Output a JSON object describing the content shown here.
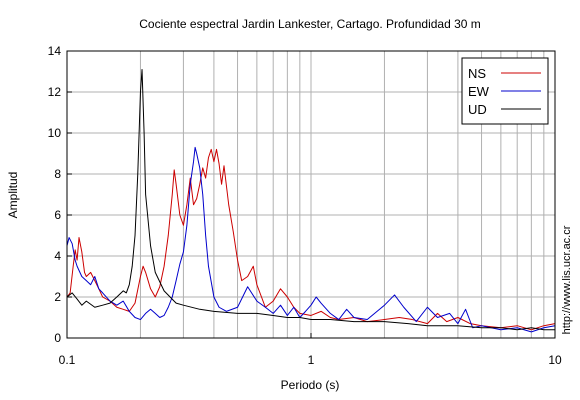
{
  "chart_data": {
    "type": "line",
    "title": "Cociente espectral Jardin Lankester, Cartago. Profundidad 30 m",
    "xlabel": "Periodo (s)",
    "ylabel": "Amplitud",
    "x_scale": "log",
    "xlim": [
      0.1,
      10
    ],
    "ylim": [
      0,
      14
    ],
    "grid": true,
    "legend_position": "top-right",
    "xticks": [
      {
        "value": 0.1,
        "label": "0.1"
      },
      {
        "value": 1,
        "label": "1"
      },
      {
        "value": 10,
        "label": "10"
      }
    ],
    "yticks": [
      0,
      2,
      4,
      6,
      8,
      10,
      12,
      14
    ],
    "side_label": "http://www.lis.ucr.ac.cr",
    "series": [
      {
        "name": "NS",
        "color": "#cc0000",
        "points": [
          [
            0.1,
            2.0
          ],
          [
            0.103,
            2.2
          ],
          [
            0.106,
            3.5
          ],
          [
            0.108,
            4.3
          ],
          [
            0.11,
            3.8
          ],
          [
            0.112,
            4.9
          ],
          [
            0.115,
            4.2
          ],
          [
            0.118,
            3.2
          ],
          [
            0.12,
            3.0
          ],
          [
            0.125,
            3.2
          ],
          [
            0.13,
            2.8
          ],
          [
            0.135,
            2.4
          ],
          [
            0.14,
            2.0
          ],
          [
            0.15,
            1.8
          ],
          [
            0.16,
            1.5
          ],
          [
            0.17,
            1.4
          ],
          [
            0.18,
            1.3
          ],
          [
            0.19,
            1.7
          ],
          [
            0.2,
            3.0
          ],
          [
            0.205,
            3.5
          ],
          [
            0.21,
            3.2
          ],
          [
            0.22,
            2.4
          ],
          [
            0.23,
            2.0
          ],
          [
            0.24,
            2.5
          ],
          [
            0.25,
            3.5
          ],
          [
            0.26,
            5.0
          ],
          [
            0.27,
            7.0
          ],
          [
            0.275,
            8.2
          ],
          [
            0.28,
            7.5
          ],
          [
            0.29,
            6.0
          ],
          [
            0.3,
            5.5
          ],
          [
            0.31,
            6.5
          ],
          [
            0.32,
            7.8
          ],
          [
            0.33,
            6.5
          ],
          [
            0.34,
            6.8
          ],
          [
            0.35,
            7.5
          ],
          [
            0.36,
            8.3
          ],
          [
            0.37,
            7.8
          ],
          [
            0.38,
            8.8
          ],
          [
            0.39,
            9.2
          ],
          [
            0.4,
            8.6
          ],
          [
            0.41,
            9.2
          ],
          [
            0.42,
            8.5
          ],
          [
            0.43,
            7.5
          ],
          [
            0.44,
            8.4
          ],
          [
            0.46,
            6.5
          ],
          [
            0.48,
            5.2
          ],
          [
            0.5,
            3.8
          ],
          [
            0.52,
            2.8
          ],
          [
            0.55,
            3.0
          ],
          [
            0.58,
            3.5
          ],
          [
            0.6,
            2.6
          ],
          [
            0.65,
            1.5
          ],
          [
            0.7,
            1.8
          ],
          [
            0.75,
            2.4
          ],
          [
            0.8,
            2.0
          ],
          [
            0.85,
            1.5
          ],
          [
            0.9,
            1.2
          ],
          [
            1.0,
            1.1
          ],
          [
            1.1,
            1.3
          ],
          [
            1.2,
            1.0
          ],
          [
            1.3,
            0.9
          ],
          [
            1.5,
            1.0
          ],
          [
            1.7,
            0.8
          ],
          [
            2.0,
            0.9
          ],
          [
            2.3,
            1.0
          ],
          [
            2.6,
            0.9
          ],
          [
            3.0,
            0.7
          ],
          [
            3.3,
            1.2
          ],
          [
            3.6,
            0.8
          ],
          [
            4.0,
            1.0
          ],
          [
            4.5,
            0.7
          ],
          [
            5.0,
            0.6
          ],
          [
            6.0,
            0.5
          ],
          [
            7.0,
            0.6
          ],
          [
            8.0,
            0.4
          ],
          [
            9.0,
            0.6
          ],
          [
            10.0,
            0.7
          ]
        ]
      },
      {
        "name": "EW",
        "color": "#0000cc",
        "points": [
          [
            0.1,
            4.5
          ],
          [
            0.102,
            4.9
          ],
          [
            0.105,
            4.6
          ],
          [
            0.108,
            3.8
          ],
          [
            0.11,
            3.5
          ],
          [
            0.115,
            3.0
          ],
          [
            0.12,
            2.8
          ],
          [
            0.125,
            2.6
          ],
          [
            0.13,
            3.0
          ],
          [
            0.135,
            2.4
          ],
          [
            0.14,
            2.2
          ],
          [
            0.15,
            1.8
          ],
          [
            0.16,
            1.6
          ],
          [
            0.17,
            1.8
          ],
          [
            0.18,
            1.3
          ],
          [
            0.19,
            1.0
          ],
          [
            0.2,
            0.9
          ],
          [
            0.21,
            1.2
          ],
          [
            0.22,
            1.4
          ],
          [
            0.23,
            1.2
          ],
          [
            0.24,
            1.0
          ],
          [
            0.25,
            1.1
          ],
          [
            0.26,
            1.5
          ],
          [
            0.27,
            2.0
          ],
          [
            0.28,
            2.8
          ],
          [
            0.29,
            3.6
          ],
          [
            0.3,
            4.2
          ],
          [
            0.31,
            5.5
          ],
          [
            0.32,
            7.5
          ],
          [
            0.33,
            8.6
          ],
          [
            0.335,
            9.3
          ],
          [
            0.34,
            9.0
          ],
          [
            0.35,
            8.3
          ],
          [
            0.36,
            7.0
          ],
          [
            0.37,
            5.0
          ],
          [
            0.38,
            3.5
          ],
          [
            0.4,
            2.0
          ],
          [
            0.42,
            1.5
          ],
          [
            0.45,
            1.3
          ],
          [
            0.5,
            1.5
          ],
          [
            0.55,
            2.5
          ],
          [
            0.6,
            1.8
          ],
          [
            0.65,
            1.5
          ],
          [
            0.7,
            1.2
          ],
          [
            0.75,
            1.6
          ],
          [
            0.8,
            1.1
          ],
          [
            0.85,
            1.5
          ],
          [
            0.9,
            1.0
          ],
          [
            0.95,
            1.3
          ],
          [
            1.0,
            1.6
          ],
          [
            1.05,
            2.0
          ],
          [
            1.1,
            1.7
          ],
          [
            1.2,
            1.2
          ],
          [
            1.3,
            0.9
          ],
          [
            1.4,
            1.4
          ],
          [
            1.5,
            1.0
          ],
          [
            1.7,
            0.9
          ],
          [
            2.0,
            1.6
          ],
          [
            2.2,
            2.1
          ],
          [
            2.4,
            1.5
          ],
          [
            2.7,
            0.8
          ],
          [
            3.0,
            1.5
          ],
          [
            3.3,
            1.0
          ],
          [
            3.7,
            1.2
          ],
          [
            4.0,
            0.7
          ],
          [
            4.3,
            1.4
          ],
          [
            4.6,
            0.5
          ],
          [
            5.0,
            0.6
          ],
          [
            6.0,
            0.4
          ],
          [
            7.0,
            0.5
          ],
          [
            8.0,
            0.3
          ],
          [
            9.0,
            0.5
          ],
          [
            10.0,
            0.6
          ]
        ]
      },
      {
        "name": "UD",
        "color": "#000000",
        "points": [
          [
            0.1,
            2.0
          ],
          [
            0.105,
            2.2
          ],
          [
            0.11,
            1.9
          ],
          [
            0.115,
            1.6
          ],
          [
            0.12,
            1.8
          ],
          [
            0.13,
            1.5
          ],
          [
            0.14,
            1.6
          ],
          [
            0.15,
            1.7
          ],
          [
            0.16,
            2.0
          ],
          [
            0.17,
            2.3
          ],
          [
            0.175,
            2.2
          ],
          [
            0.18,
            2.6
          ],
          [
            0.185,
            3.5
          ],
          [
            0.19,
            5.0
          ],
          [
            0.195,
            8.0
          ],
          [
            0.2,
            12.0
          ],
          [
            0.203,
            13.1
          ],
          [
            0.207,
            10.0
          ],
          [
            0.21,
            7.0
          ],
          [
            0.22,
            4.5
          ],
          [
            0.23,
            3.2
          ],
          [
            0.25,
            2.3
          ],
          [
            0.28,
            1.7
          ],
          [
            0.3,
            1.6
          ],
          [
            0.35,
            1.4
          ],
          [
            0.4,
            1.3
          ],
          [
            0.5,
            1.2
          ],
          [
            0.6,
            1.2
          ],
          [
            0.7,
            1.1
          ],
          [
            0.8,
            1.0
          ],
          [
            0.9,
            1.0
          ],
          [
            1.0,
            0.9
          ],
          [
            1.2,
            0.9
          ],
          [
            1.5,
            0.8
          ],
          [
            2.0,
            0.8
          ],
          [
            2.5,
            0.7
          ],
          [
            3.0,
            0.6
          ],
          [
            4.0,
            0.6
          ],
          [
            5.0,
            0.5
          ],
          [
            6.0,
            0.5
          ],
          [
            7.0,
            0.4
          ],
          [
            8.0,
            0.5
          ],
          [
            9.0,
            0.4
          ],
          [
            10.0,
            0.4
          ]
        ]
      }
    ]
  }
}
